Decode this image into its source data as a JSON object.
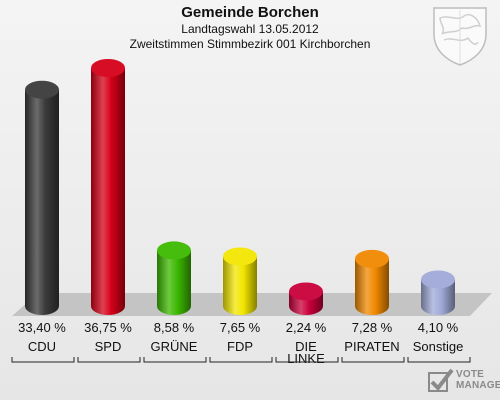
{
  "title": "Gemeinde Borchen",
  "subtitle1": "Landtagswahl 13.05.2012",
  "subtitle2": "Zweitstimmen Stimmbezirk 001 Kirchborchen",
  "chart_data": {
    "type": "bar",
    "categories": [
      "CDU",
      "SPD",
      "GRÜNE",
      "FDP",
      "DIE LINKE",
      "PIRATEN",
      "Sonstige"
    ],
    "values": [
      33.4,
      36.75,
      8.58,
      7.65,
      2.24,
      7.28,
      4.1
    ],
    "value_labels": [
      "33,40 %",
      "36,75 %",
      "8,58 %",
      "7,65 %",
      "2,24 %",
      "7,28 %",
      "4,10 %"
    ],
    "colors": [
      "#3a3a3a",
      "#d40018",
      "#3cb800",
      "#f2e600",
      "#c8003a",
      "#f08800",
      "#a0aad8"
    ],
    "ylim": [
      0,
      36.75
    ],
    "grid": false,
    "legend": "none"
  },
  "logo": {
    "text_line1": "VOTE",
    "text_line2": "MANAGER"
  }
}
